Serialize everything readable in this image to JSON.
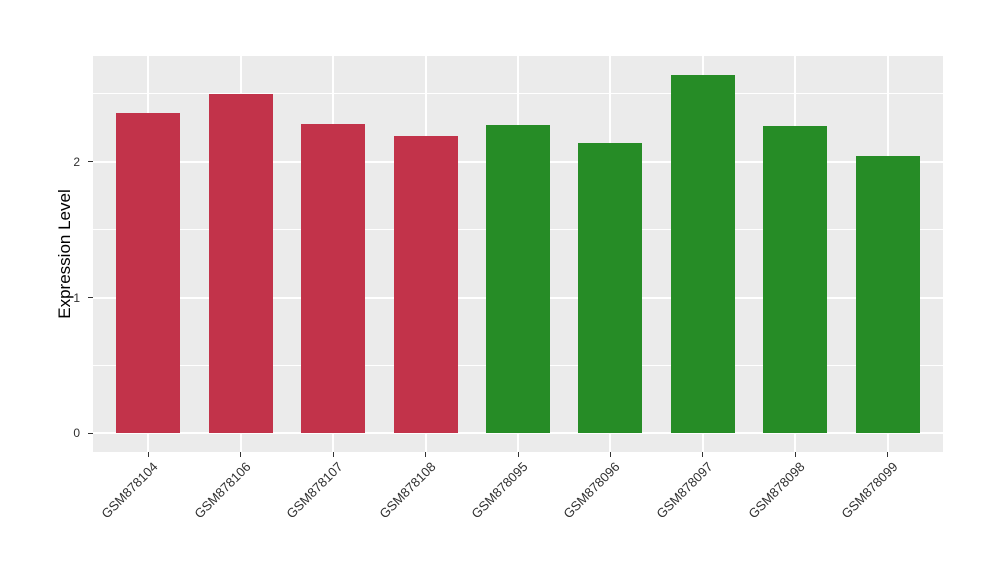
{
  "figure": {
    "background_color": "#FFFFFF",
    "panel_background_color": "#EBEBEB",
    "grid_color": "#FFFFFF",
    "tick_color": "#333333",
    "axis_text_color": "#303030",
    "axis_title_color": "#000000"
  },
  "chart_data": {
    "type": "bar",
    "title": "",
    "xlabel": "",
    "ylabel": "Expression Level",
    "categories": [
      "GSM878104",
      "GSM878106",
      "GSM878107",
      "GSM878108",
      "GSM878095",
      "GSM878096",
      "GSM878097",
      "GSM878098",
      "GSM878099"
    ],
    "values": [
      2.36,
      2.5,
      2.28,
      2.19,
      2.27,
      2.14,
      2.64,
      2.26,
      2.04
    ],
    "bar_colors": [
      "#C2334A",
      "#C2334A",
      "#C2334A",
      "#C2334A",
      "#268C26",
      "#268C26",
      "#268C26",
      "#268C26",
      "#268C26"
    ],
    "group_color_red": "#C2334A",
    "group_color_green": "#268C26",
    "yticks": [
      0,
      1,
      2
    ],
    "ytick_labels": [
      "0",
      "1",
      "2"
    ],
    "yticks_minor": [
      0.5,
      1.5,
      2.5
    ],
    "ylim": [
      -0.13,
      2.78
    ],
    "x_label_angle_deg": 45,
    "grid": true,
    "legend_position": "none"
  }
}
